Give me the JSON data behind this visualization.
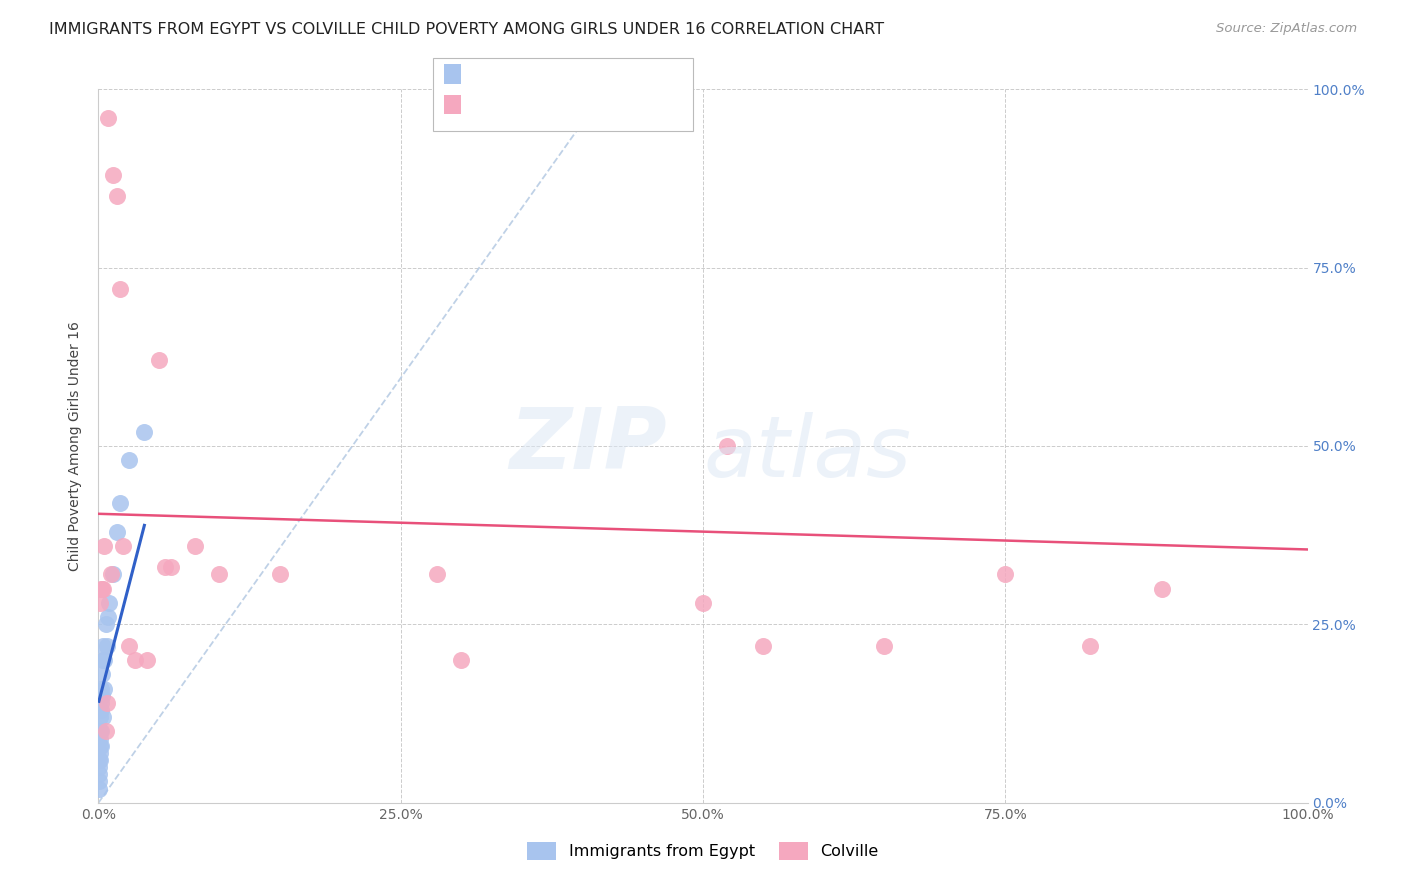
{
  "title": "IMMIGRANTS FROM EGYPT VS COLVILLE CHILD POVERTY AMONG GIRLS UNDER 16 CORRELATION CHART",
  "source": "Source: ZipAtlas.com",
  "ylabel": "Child Poverty Among Girls Under 16",
  "xlim": [
    0,
    1.0
  ],
  "ylim": [
    0,
    1.0
  ],
  "xticks": [
    0.0,
    0.25,
    0.5,
    0.75,
    1.0
  ],
  "xticklabels": [
    "0.0%",
    "25.0%",
    "50.0%",
    "75.0%",
    "100.0%"
  ],
  "yticks": [
    0.0,
    0.25,
    0.5,
    0.75,
    1.0
  ],
  "yticklabels": [
    "0.0%",
    "25.0%",
    "50.0%",
    "75.0%",
    "100.0%"
  ],
  "blue_color": "#a8c4ee",
  "pink_color": "#f5a8bf",
  "blue_line_color": "#3060c8",
  "pink_line_color": "#e8507a",
  "dashed_line_color": "#b8cce4",
  "watermark_zip": "ZIP",
  "watermark_atlas": "atlas",
  "legend_r1_color": "#4070c0",
  "legend_r2_color": "#e05878",
  "legend_n_color": "#4070c0",
  "title_color": "#222222",
  "source_color": "#999999",
  "tick_color_right": "#5080c8",
  "tick_color_bottom": "#666666",
  "ylabel_color": "#444444",
  "blue_scatter_x": [
    0.0004,
    0.0005,
    0.0006,
    0.0007,
    0.0008,
    0.0009,
    0.001,
    0.0012,
    0.0013,
    0.0015,
    0.0016,
    0.0018,
    0.002,
    0.002,
    0.0022,
    0.0025,
    0.003,
    0.003,
    0.0035,
    0.004,
    0.004,
    0.005,
    0.005,
    0.006,
    0.007,
    0.008,
    0.009,
    0.012,
    0.015,
    0.018,
    0.025,
    0.038
  ],
  "blue_scatter_y": [
    0.02,
    0.04,
    0.03,
    0.05,
    0.06,
    0.08,
    0.07,
    0.09,
    0.1,
    0.06,
    0.12,
    0.08,
    0.14,
    0.16,
    0.1,
    0.13,
    0.15,
    0.18,
    0.12,
    0.2,
    0.22,
    0.16,
    0.2,
    0.25,
    0.22,
    0.26,
    0.28,
    0.32,
    0.38,
    0.42,
    0.48,
    0.52
  ],
  "pink_scatter_x": [
    0.001,
    0.002,
    0.003,
    0.004,
    0.005,
    0.006,
    0.007,
    0.008,
    0.01,
    0.012,
    0.015,
    0.018,
    0.02,
    0.025,
    0.03,
    0.04,
    0.05,
    0.055,
    0.06,
    0.08,
    0.1,
    0.15,
    0.28,
    0.3,
    0.5,
    0.52,
    0.55,
    0.65,
    0.75,
    0.82,
    0.88
  ],
  "pink_scatter_y": [
    0.28,
    0.3,
    0.3,
    0.3,
    0.36,
    0.1,
    0.14,
    0.96,
    0.32,
    0.88,
    0.85,
    0.72,
    0.36,
    0.22,
    0.2,
    0.2,
    0.62,
    0.33,
    0.33,
    0.36,
    0.32,
    0.32,
    0.32,
    0.2,
    0.28,
    0.5,
    0.22,
    0.22,
    0.32,
    0.22,
    0.3
  ],
  "pink_trend_x0": 0.0,
  "pink_trend_y0": 0.405,
  "pink_trend_x1": 1.0,
  "pink_trend_y1": 0.355,
  "title_fontsize": 11.5,
  "axis_label_fontsize": 10,
  "tick_fontsize": 10,
  "legend_fontsize": 12,
  "source_fontsize": 9.5
}
